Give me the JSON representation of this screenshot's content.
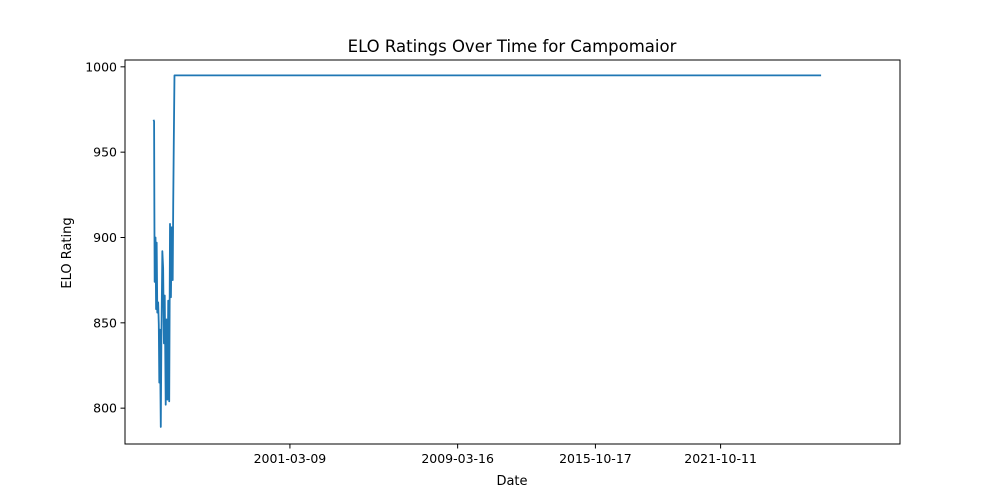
{
  "chart_data": {
    "type": "line",
    "title": "ELO Ratings Over Time for Campomaior",
    "xlabel": "Date",
    "ylabel": "ELO Rating",
    "x_ticks": [
      "2001-03-09",
      "2009-03-16",
      "2015-10-17",
      "2021-10-11"
    ],
    "y_ticks": [
      800,
      850,
      900,
      950,
      1000
    ],
    "xlim": [
      "1993-04-20",
      "2030-05-10"
    ],
    "ylim": [
      779,
      1004
    ],
    "grid": false,
    "series": [
      {
        "color": "#1f77b4",
        "points": [
          [
            "1994-09-01",
            969
          ],
          [
            "1994-09-10",
            968
          ],
          [
            "1994-09-15",
            916
          ],
          [
            "1994-09-20",
            874
          ],
          [
            "1994-09-27",
            888
          ],
          [
            "1994-10-05",
            900
          ],
          [
            "1994-10-15",
            858
          ],
          [
            "1994-10-25",
            897
          ],
          [
            "1994-11-05",
            856
          ],
          [
            "1994-11-20",
            862
          ],
          [
            "1994-12-01",
            849
          ],
          [
            "1994-12-10",
            815
          ],
          [
            "1994-12-20",
            846
          ],
          [
            "1995-01-05",
            789
          ],
          [
            "1995-01-15",
            838
          ],
          [
            "1995-02-01",
            892
          ],
          [
            "1995-02-15",
            882
          ],
          [
            "1995-03-01",
            838
          ],
          [
            "1995-03-15",
            866
          ],
          [
            "1995-04-01",
            802
          ],
          [
            "1995-04-15",
            852
          ],
          [
            "1995-05-01",
            805
          ],
          [
            "1995-05-15",
            863
          ],
          [
            "1995-06-01",
            804
          ],
          [
            "1995-06-15",
            908
          ],
          [
            "1995-07-01",
            865
          ],
          [
            "1995-07-15",
            906
          ],
          [
            "1995-08-01",
            875
          ],
          [
            "1995-08-10",
            920
          ],
          [
            "1995-08-20",
            956
          ],
          [
            "1995-09-01",
            995
          ],
          [
            "2026-08-01",
            995
          ]
        ]
      }
    ]
  }
}
